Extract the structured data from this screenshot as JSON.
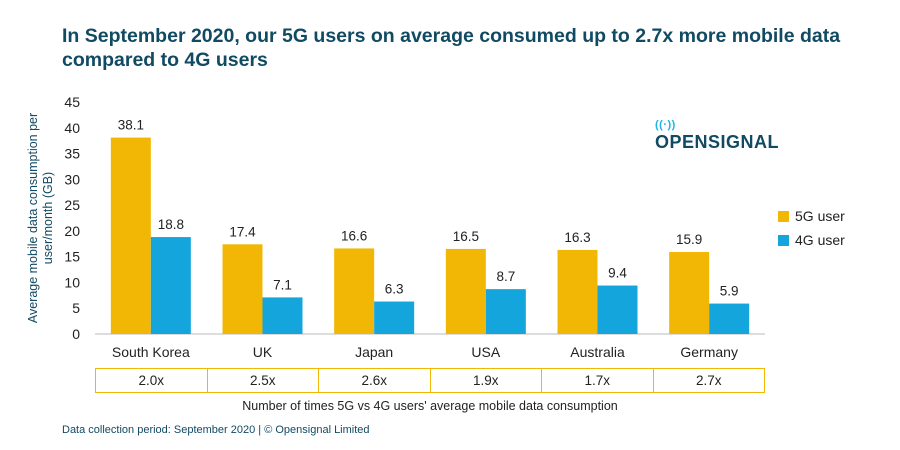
{
  "title": "In September 2020, our 5G users on average consumed up to 2.7x more mobile data compared to 4G users",
  "brand": {
    "name": "OPENSIGNAL"
  },
  "footer": "Data collection period: September 2020 | © Opensignal Limited",
  "ratio_caption": "Number of times 5G vs 4G users' average mobile data consumption",
  "ratios": [
    "2.0x",
    "2.5x",
    "2.6x",
    "1.9x",
    "1.7x",
    "2.7x"
  ],
  "colors": {
    "5G": "#f2b705",
    "4G": "#14a5dc",
    "title": "#114a63"
  },
  "chart_data": {
    "type": "bar",
    "categories": [
      "South Korea",
      "UK",
      "Japan",
      "USA",
      "Australia",
      "Germany"
    ],
    "series": [
      {
        "name": "5G user",
        "values": [
          38.1,
          17.4,
          16.6,
          16.5,
          16.3,
          15.9
        ]
      },
      {
        "name": "4G user",
        "values": [
          18.8,
          7.1,
          6.3,
          8.7,
          9.4,
          5.9
        ]
      }
    ],
    "ylabel": "Average mobile data consumption per user/month (GB)",
    "ylim": [
      0,
      45
    ],
    "yticks": [
      0,
      5,
      10,
      15,
      20,
      25,
      30,
      35,
      40,
      45
    ],
    "legend_position": "right"
  }
}
